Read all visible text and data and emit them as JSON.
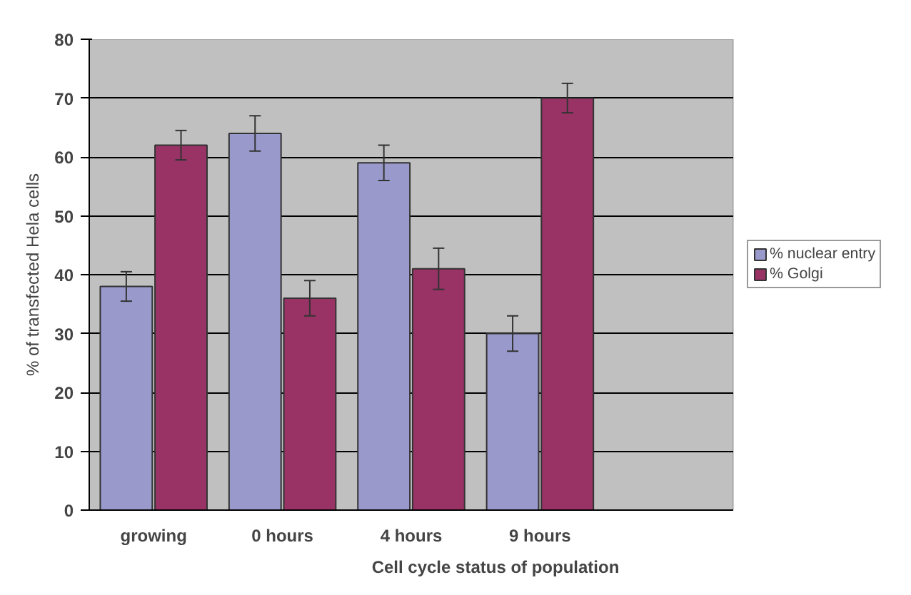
{
  "chart_data": {
    "type": "bar",
    "xlabel": "Cell cycle status of population",
    "ylabel": "% of transfected Hela cells",
    "categories": [
      "growing",
      "0 hours",
      "4 hours",
      "9 hours",
      null
    ],
    "series": [
      {
        "name": "% nuclear entry",
        "color": "#9999cc",
        "values": [
          38,
          64,
          59,
          30,
          null
        ],
        "errors": [
          2.5,
          3,
          3,
          3,
          null
        ]
      },
      {
        "name": "% Golgi",
        "color": "#993366",
        "values": [
          62,
          36,
          41,
          70,
          null
        ],
        "errors": [
          2.5,
          3,
          3.5,
          2.5,
          null
        ]
      }
    ],
    "ylim": [
      0,
      80
    ],
    "yticks": [
      0,
      10,
      20,
      30,
      40,
      50,
      60,
      70,
      80
    ],
    "grid": "y",
    "legend": "right"
  }
}
